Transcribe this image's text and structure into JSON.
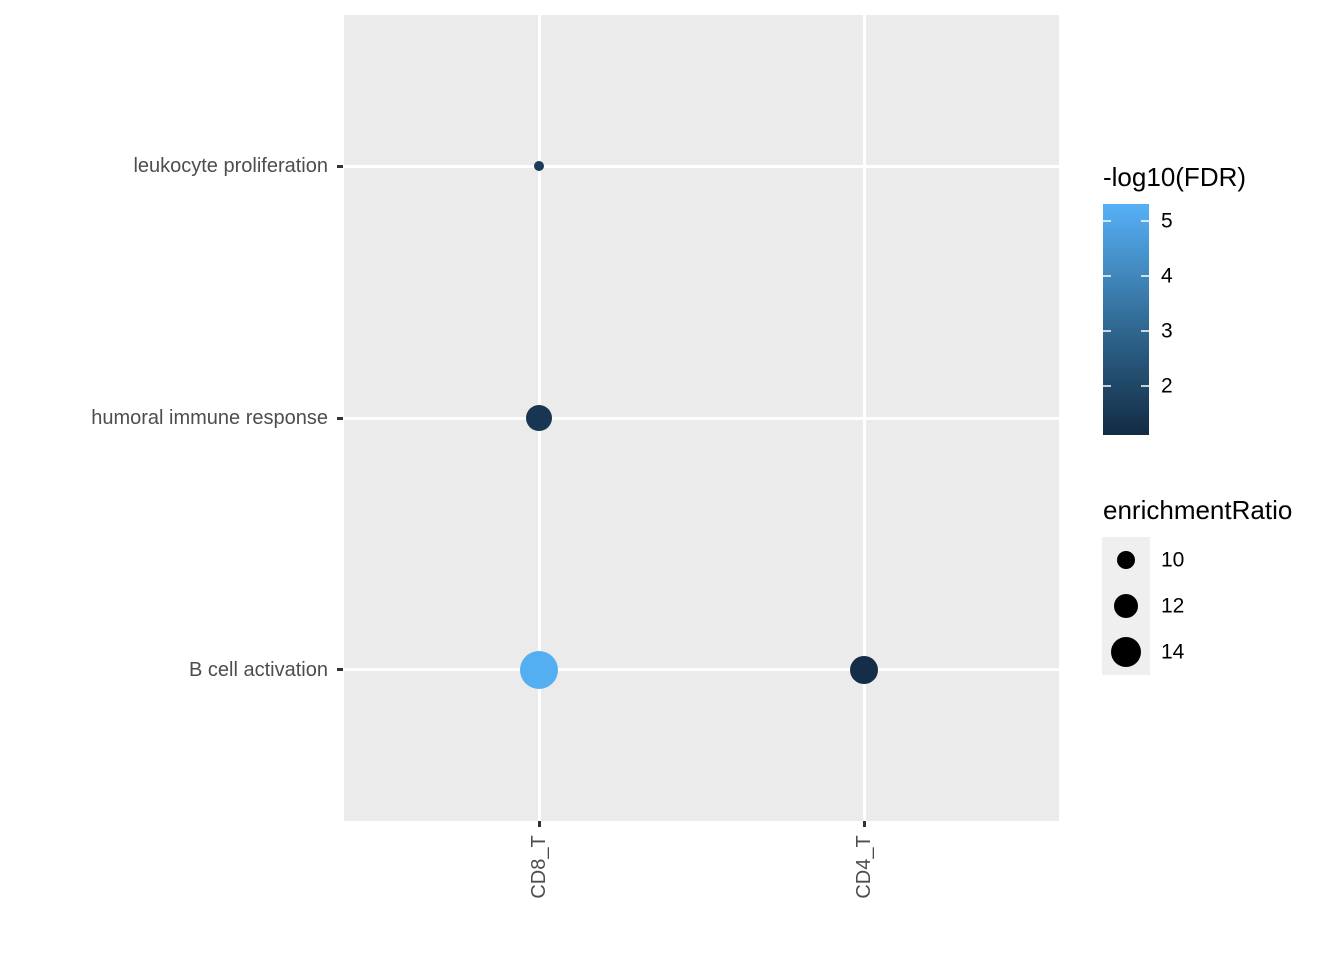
{
  "chart_data": {
    "type": "scatter",
    "title": "",
    "xlabel": "",
    "ylabel": "",
    "x_categories": [
      "CD8_T",
      "CD4_T"
    ],
    "y_categories": [
      "leukocyte proliferation",
      "humoral immune response",
      "B cell activation"
    ],
    "points": [
      {
        "x": "CD8_T",
        "y": "leukocyte proliferation",
        "enrichmentRatio": 7.3,
        "neg_log10_FDR": 1.6
      },
      {
        "x": "CD8_T",
        "y": "humoral immune response",
        "enrichmentRatio": 12.7,
        "neg_log10_FDR": 1.45
      },
      {
        "x": "CD8_T",
        "y": "B cell activation",
        "enrichmentRatio": 16.7,
        "neg_log10_FDR": 5.2
      },
      {
        "x": "CD4_T",
        "y": "B cell activation",
        "enrichmentRatio": 13.3,
        "neg_log10_FDR": 1.2
      }
    ],
    "color_legend": {
      "title": "-log10(FDR)",
      "tick_labels": [
        5,
        4,
        3,
        2
      ],
      "domain": [
        1.1,
        5.3
      ],
      "low_color": "#132B43",
      "mid_color": "#30668F",
      "mid_value": 3,
      "high_color": "#56B1F7"
    },
    "size_legend": {
      "title": "enrichmentRatio",
      "values": [
        10,
        12,
        14
      ]
    },
    "style": {
      "panel_background": "#EBEBEB",
      "gridline_color": "#FFFFFF",
      "axis_text_color": "#4D4D4D",
      "tick_color": "#333333",
      "legend_text_color": "#000000",
      "legend_key_background": "#EFEFEF"
    },
    "layout_hints": {
      "grid": "major gridlines only, white on grey panel",
      "legend_position": "right",
      "x_tick_rotation_deg": 90
    }
  }
}
